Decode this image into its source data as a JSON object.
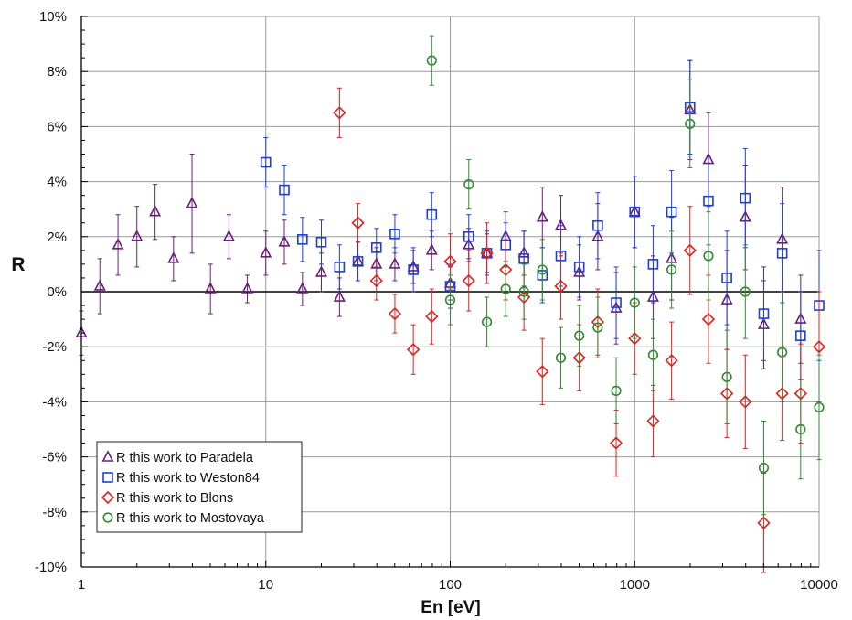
{
  "chart_data": {
    "type": "scatter",
    "xlabel": "En [eV]",
    "ylabel": "R",
    "x_scale": "log",
    "xlim": [
      1,
      10000
    ],
    "ylim": [
      -0.1,
      0.1
    ],
    "x_ticks": [
      1,
      10,
      100,
      1000,
      10000
    ],
    "x_tick_labels": [
      "1",
      "10",
      "100",
      "1000",
      "10000"
    ],
    "y_ticks": [
      -0.1,
      -0.08,
      -0.06,
      -0.04,
      -0.02,
      0,
      0.02,
      0.04,
      0.06,
      0.08,
      0.1
    ],
    "y_tick_labels": [
      "-10%",
      "-8%",
      "-6%",
      "-4%",
      "-2%",
      "0%",
      "2%",
      "4%",
      "6%",
      "8%",
      "10%"
    ],
    "grid": true,
    "legend_position": "bottom-left",
    "series": [
      {
        "name": "R this work to Paradela",
        "color": "#6a1f7a",
        "marker": "triangle",
        "points": [
          [
            1,
            -0.015,
            0.008
          ],
          [
            1.26,
            0.002,
            0.01
          ],
          [
            1.58,
            0.017,
            0.011
          ],
          [
            2,
            0.02,
            0.011
          ],
          [
            2.51,
            0.029,
            0.01
          ],
          [
            3.16,
            0.012,
            0.008
          ],
          [
            3.98,
            0.032,
            0.018
          ],
          [
            5.01,
            0.001,
            0.009
          ],
          [
            6.31,
            0.02,
            0.008
          ],
          [
            7.94,
            0.001,
            0.005
          ],
          [
            10,
            0.014,
            0.008
          ],
          [
            12.6,
            0.018,
            0.008
          ],
          [
            15.8,
            0.001,
            0.006
          ],
          [
            20,
            0.007,
            0.007
          ],
          [
            25.1,
            -0.002,
            0.007
          ],
          [
            31.6,
            0.011,
            0.007
          ],
          [
            39.8,
            0.01,
            0.006
          ],
          [
            50.1,
            0.01,
            0.006
          ],
          [
            63.1,
            0.009,
            0.006
          ],
          [
            79.4,
            0.015,
            0.007
          ],
          [
            100,
            0.003,
            0.006
          ],
          [
            126,
            0.017,
            0.006
          ],
          [
            158,
            0.014,
            0.007
          ],
          [
            200,
            0.02,
            0.009
          ],
          [
            251,
            0.014,
            0.008
          ],
          [
            316,
            0.027,
            0.011
          ],
          [
            398,
            0.024,
            0.011
          ],
          [
            501,
            0.007,
            0.01
          ],
          [
            631,
            0.02,
            0.012
          ],
          [
            794,
            -0.006,
            0.013
          ],
          [
            1000,
            0.029,
            0.013
          ],
          [
            1259,
            -0.002,
            0.015
          ],
          [
            1585,
            0.012,
            0.015
          ],
          [
            1995,
            0.066,
            0.018
          ],
          [
            2512,
            0.048,
            0.017
          ],
          [
            3162,
            -0.003,
            0.018
          ],
          [
            3981,
            0.027,
            0.019
          ],
          [
            5012,
            -0.012,
            0.016
          ],
          [
            6310,
            0.019,
            0.019
          ],
          [
            7943,
            -0.01,
            0.016
          ]
        ]
      },
      {
        "name": "R this work to Weston84",
        "color": "#1f3ed6",
        "marker": "square",
        "points": [
          [
            10,
            0.047,
            0.009
          ],
          [
            12.6,
            0.037,
            0.009
          ],
          [
            15.8,
            0.019,
            0.008
          ],
          [
            20,
            0.018,
            0.008
          ],
          [
            25.1,
            0.009,
            0.008
          ],
          [
            31.6,
            0.011,
            0.007
          ],
          [
            39.8,
            0.016,
            0.007
          ],
          [
            50.1,
            0.021,
            0.007
          ],
          [
            63.1,
            0.008,
            0.008
          ],
          [
            79.4,
            0.028,
            0.008
          ],
          [
            100,
            0.002,
            0.008
          ],
          [
            126,
            0.02,
            0.008
          ],
          [
            158,
            0.014,
            0.008
          ],
          [
            200,
            0.017,
            0.008
          ],
          [
            251,
            0.012,
            0.01
          ],
          [
            316,
            0.006,
            0.01
          ],
          [
            398,
            0.013,
            0.011
          ],
          [
            501,
            0.009,
            0.011
          ],
          [
            631,
            0.024,
            0.012
          ],
          [
            794,
            -0.004,
            0.013
          ],
          [
            1000,
            0.029,
            0.013
          ],
          [
            1259,
            0.01,
            0.014
          ],
          [
            1585,
            0.029,
            0.015
          ],
          [
            1995,
            0.067,
            0.017
          ],
          [
            2512,
            0.033,
            0.016
          ],
          [
            3162,
            0.005,
            0.017
          ],
          [
            3981,
            0.034,
            0.018
          ],
          [
            5012,
            -0.008,
            0.017
          ],
          [
            6310,
            0.014,
            0.018
          ],
          [
            7943,
            -0.016,
            0.016
          ],
          [
            10000,
            -0.005,
            0.02
          ]
        ]
      },
      {
        "name": "R this work to Blons",
        "color": "#e3201b",
        "marker": "diamond",
        "points": [
          [
            25.1,
            0.065,
            0.009
          ],
          [
            31.6,
            0.025,
            0.007
          ],
          [
            39.8,
            0.004,
            0.007
          ],
          [
            50.1,
            -0.008,
            0.007
          ],
          [
            63.1,
            -0.021,
            0.009
          ],
          [
            79.4,
            -0.009,
            0.01
          ],
          [
            100,
            0.011,
            0.01
          ],
          [
            126,
            0.004,
            0.011
          ],
          [
            158,
            0.014,
            0.011
          ],
          [
            200,
            0.008,
            0.011
          ],
          [
            251,
            -0.002,
            0.012
          ],
          [
            316,
            -0.029,
            0.012
          ],
          [
            398,
            0.002,
            0.012
          ],
          [
            501,
            -0.024,
            0.012
          ],
          [
            631,
            -0.011,
            0.012
          ],
          [
            794,
            -0.055,
            0.012
          ],
          [
            1000,
            -0.017,
            0.013
          ],
          [
            1259,
            -0.047,
            0.013
          ],
          [
            1585,
            -0.025,
            0.014
          ],
          [
            1995,
            0.015,
            0.016
          ],
          [
            2512,
            -0.01,
            0.016
          ],
          [
            3162,
            -0.037,
            0.016
          ],
          [
            3981,
            -0.04,
            0.017
          ],
          [
            5012,
            -0.084,
            0.018
          ],
          [
            6310,
            -0.037,
            0.017
          ],
          [
            7943,
            -0.037,
            0.018
          ],
          [
            10000,
            -0.02,
            0.02
          ]
        ]
      },
      {
        "name": "R this work to Mostovaya",
        "color": "#2e8b2e",
        "marker": "circle",
        "points": [
          [
            79.4,
            0.084,
            0.009
          ],
          [
            100,
            -0.003,
            0.009
          ],
          [
            126,
            0.039,
            0.009
          ],
          [
            158,
            -0.011,
            0.009
          ],
          [
            200,
            0.001,
            0.01
          ],
          [
            251,
            0.0,
            0.01
          ],
          [
            316,
            0.008,
            0.011
          ],
          [
            398,
            -0.024,
            0.011
          ],
          [
            501,
            -0.016,
            0.011
          ],
          [
            631,
            -0.013,
            0.011
          ],
          [
            794,
            -0.036,
            0.012
          ],
          [
            1000,
            -0.004,
            0.013
          ],
          [
            1259,
            -0.023,
            0.013
          ],
          [
            1585,
            0.008,
            0.014
          ],
          [
            1995,
            0.061,
            0.016
          ],
          [
            2512,
            0.013,
            0.016
          ],
          [
            3162,
            -0.031,
            0.017
          ],
          [
            3981,
            0.0,
            0.017
          ],
          [
            5012,
            -0.064,
            0.017
          ],
          [
            6310,
            -0.022,
            0.018
          ],
          [
            7943,
            -0.05,
            0.018
          ],
          [
            10000,
            -0.042,
            0.019
          ]
        ]
      }
    ],
    "legend": [
      {
        "symbol": "△",
        "label": "R this work to Paradela"
      },
      {
        "symbol": "□",
        "label": "R this work to Weston84"
      },
      {
        "symbol": "◇",
        "label": "R this work to Blons"
      },
      {
        "symbol": "○",
        "label": "R this work to Mostovaya"
      }
    ]
  }
}
